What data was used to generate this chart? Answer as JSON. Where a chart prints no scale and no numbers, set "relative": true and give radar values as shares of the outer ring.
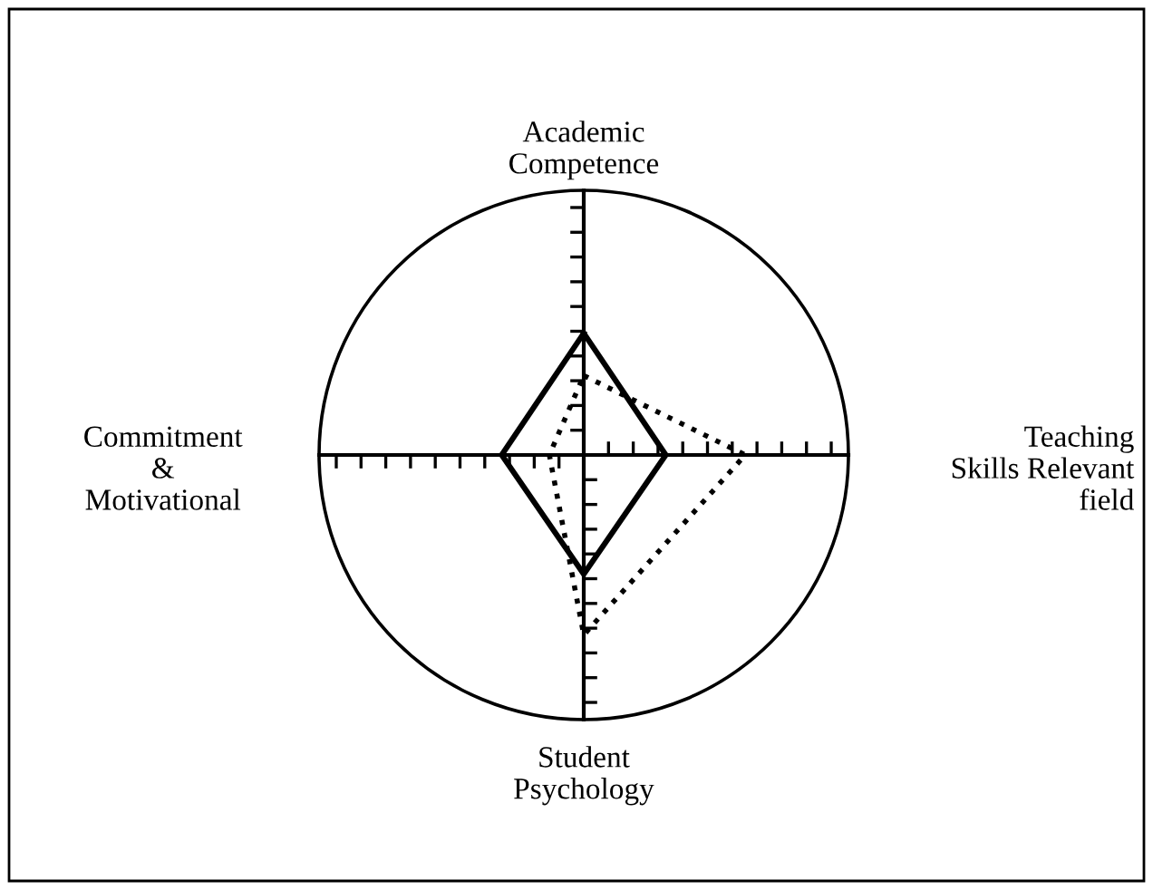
{
  "chart_data": {
    "type": "radar",
    "relative": true,
    "categories": [
      "Academic\nCompetence",
      "Teaching\nSkills Relevant\nfield",
      "Student\nPsychology",
      "Commitment\n&\nMotivational"
    ],
    "series": [
      {
        "color": "#000000",
        "line_style": "solid",
        "values": [
          0.46,
          0.31,
          0.45,
          0.31
        ]
      },
      {
        "color": "#000000",
        "line_style": "dotted",
        "values": [
          0.3,
          0.61,
          0.68,
          0.13
        ]
      }
    ]
  }
}
